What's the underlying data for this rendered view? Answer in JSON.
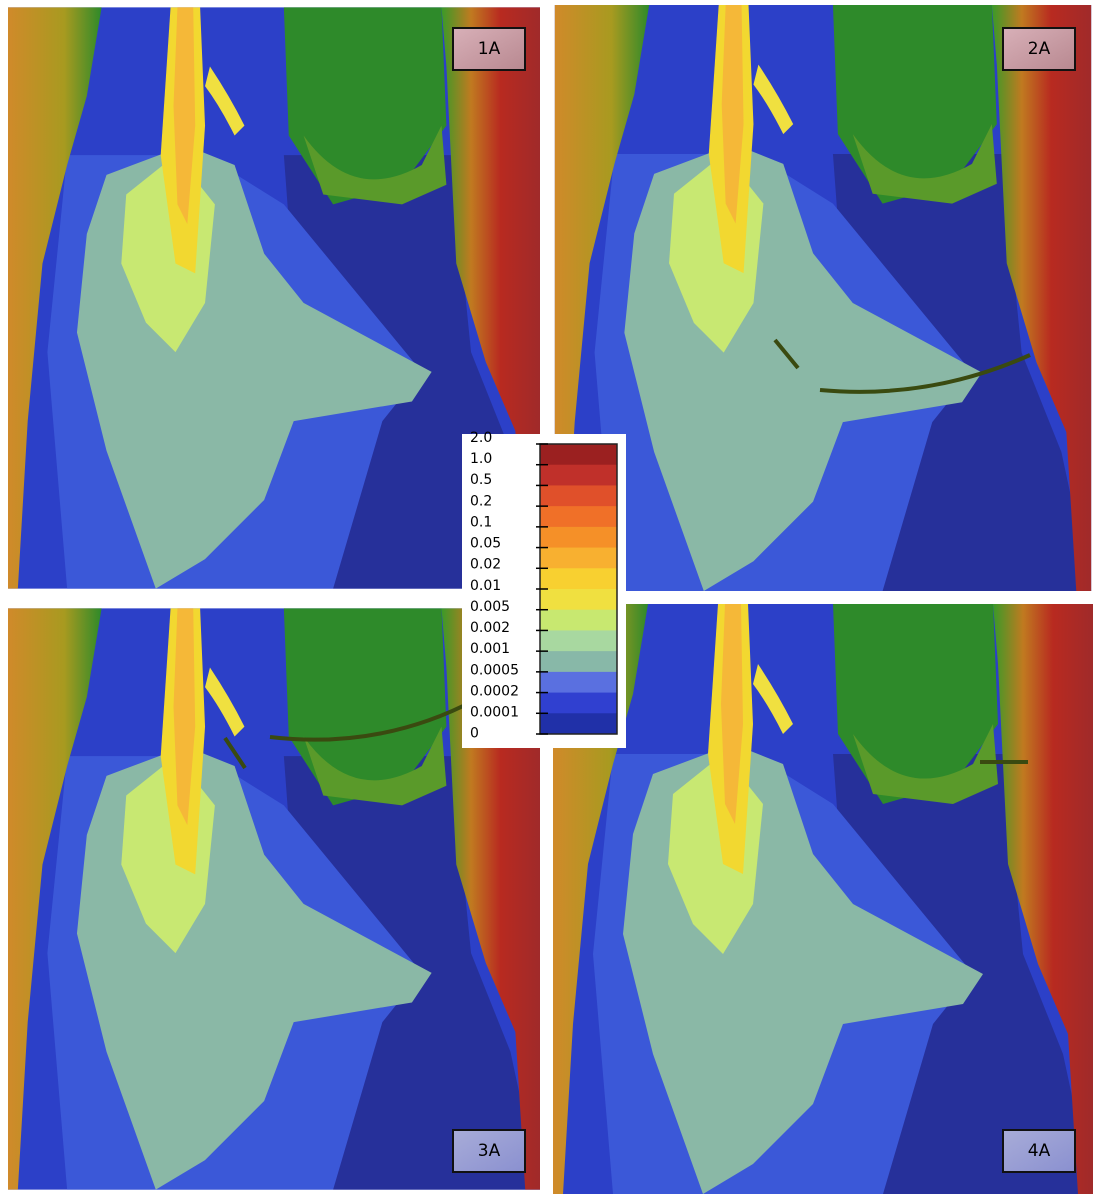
{
  "panels": [
    {
      "label": "1A"
    },
    {
      "label": "2A"
    },
    {
      "label": "3A"
    },
    {
      "label": "4A"
    }
  ],
  "legend": {
    "labels": [
      "2.0",
      "1.0",
      "0.5",
      "0.2",
      "0.1",
      "0.05",
      "0.02",
      "0.01",
      "0.005",
      "0.002",
      "0.001",
      "0.0005",
      "0.0002",
      "0.0001",
      "0"
    ],
    "colors": [
      "#9b2020",
      "#c0302a",
      "#e0502a",
      "#f07028",
      "#f59028",
      "#f8b030",
      "#f8d030",
      "#f0e040",
      "#c8e870",
      "#a8d8a0",
      "#88b8a8",
      "#5a70e0",
      "#3040d0",
      "#2030a8"
    ]
  }
}
